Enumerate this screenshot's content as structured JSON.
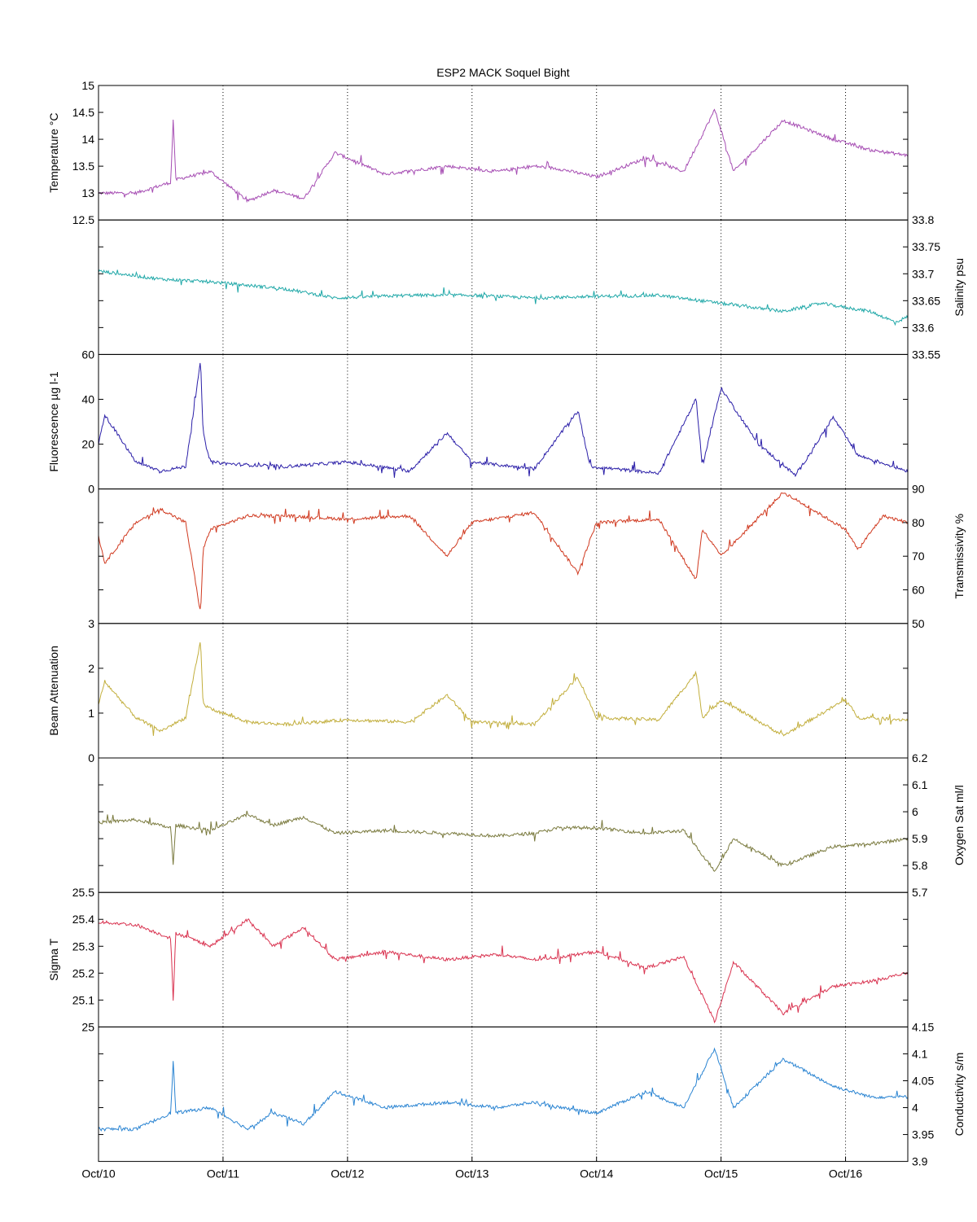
{
  "chart_data": {
    "type": "line",
    "title": "ESP2 MACK  Soquel Bight",
    "xlim": [
      0,
      6.5
    ],
    "x_ticks": [
      0,
      1,
      2,
      3,
      4,
      5,
      6
    ],
    "x_tick_labels": [
      "Oct/10",
      "Oct/11",
      "Oct/12",
      "Oct/13",
      "Oct/14",
      "Oct/15",
      "Oct/16"
    ],
    "grid": "vertical-dotted",
    "panels": [
      {
        "ylabel": "Temperature °C",
        "axis_side": "left",
        "color": "#A64DB3",
        "ylim": [
          12.5,
          15
        ],
        "yticks": [
          12.5,
          13,
          13.5,
          14,
          14.5,
          15
        ],
        "ytick_labels": [
          "12.5",
          "13",
          "13.5",
          "14",
          "14.5",
          "15"
        ],
        "x": [
          0,
          0.3,
          0.58,
          0.6,
          0.62,
          0.9,
          1.2,
          1.4,
          1.65,
          1.9,
          2.3,
          2.8,
          3.2,
          3.5,
          3.7,
          4.0,
          4.4,
          4.7,
          4.95,
          5.1,
          5.5,
          5.9,
          6.2,
          6.5
        ],
        "values": [
          13.0,
          13.0,
          13.2,
          14.4,
          13.25,
          13.4,
          12.85,
          13.05,
          12.9,
          13.75,
          13.35,
          13.5,
          13.4,
          13.5,
          13.45,
          13.3,
          13.65,
          13.4,
          14.55,
          13.4,
          14.35,
          14.0,
          13.8,
          13.7
        ]
      },
      {
        "ylabel": "Salinity psu",
        "axis_side": "right",
        "color": "#20A8A8",
        "ylim": [
          33.55,
          33.8
        ],
        "yticks": [
          33.55,
          33.6,
          33.65,
          33.7,
          33.75,
          33.8
        ],
        "ytick_labels": [
          "33.55",
          "33.6",
          "33.65",
          "33.7",
          "33.75",
          "33.8"
        ],
        "x": [
          0,
          0.5,
          0.9,
          1.5,
          1.9,
          2.5,
          3.0,
          3.5,
          4.0,
          4.5,
          5.0,
          5.5,
          5.8,
          6.2,
          6.4,
          6.5
        ],
        "values": [
          33.705,
          33.69,
          33.685,
          33.672,
          33.655,
          33.66,
          33.66,
          33.655,
          33.658,
          33.66,
          33.645,
          33.63,
          33.645,
          33.63,
          33.61,
          33.62
        ]
      },
      {
        "ylabel": "Fluorescence µg l-1",
        "axis_side": "left",
        "color": "#2B1FA8",
        "ylim": [
          0,
          60
        ],
        "yticks": [
          0,
          20,
          40,
          60
        ],
        "ytick_labels": [
          "0",
          "20",
          "40",
          "60"
        ],
        "x": [
          0,
          0.05,
          0.3,
          0.5,
          0.7,
          0.82,
          0.84,
          0.9,
          1.1,
          1.5,
          2.0,
          2.5,
          2.8,
          3.0,
          3.5,
          3.85,
          3.95,
          4.5,
          4.8,
          4.85,
          5.0,
          5.3,
          5.6,
          5.9,
          6.1,
          6.5
        ],
        "values": [
          20,
          33,
          12,
          8,
          10,
          57,
          25,
          12,
          11,
          10,
          12,
          8,
          25,
          12,
          9,
          35,
          10,
          7,
          40,
          10,
          45,
          20,
          6,
          32,
          15,
          8
        ]
      },
      {
        "ylabel": "Transmissivity %",
        "axis_side": "right",
        "color": "#D0391F",
        "ylim": [
          50,
          90
        ],
        "yticks": [
          50,
          60,
          70,
          80,
          90
        ],
        "ytick_labels": [
          "50",
          "60",
          "70",
          "80",
          "90"
        ],
        "x": [
          0,
          0.05,
          0.3,
          0.5,
          0.7,
          0.82,
          0.84,
          0.9,
          1.2,
          1.5,
          2.0,
          2.5,
          2.8,
          3.0,
          3.5,
          3.85,
          4.0,
          4.5,
          4.8,
          4.85,
          5.0,
          5.5,
          6.0,
          6.1,
          6.3,
          6.5
        ],
        "values": [
          76,
          68,
          80,
          84,
          80,
          53,
          72,
          78,
          82,
          82,
          81,
          82,
          70,
          80,
          83,
          65,
          80,
          81,
          63,
          78,
          70,
          89,
          78,
          72,
          82,
          80
        ]
      },
      {
        "ylabel": "Beam Attenuation",
        "axis_side": "left",
        "color": "#C2AE3C",
        "ylim": [
          0,
          3
        ],
        "yticks": [
          0,
          1,
          2,
          3
        ],
        "ytick_labels": [
          "0",
          "1",
          "2",
          "3"
        ],
        "x": [
          0,
          0.05,
          0.3,
          0.5,
          0.7,
          0.82,
          0.84,
          0.9,
          1.2,
          1.5,
          2.0,
          2.5,
          2.8,
          3.0,
          3.5,
          3.85,
          4.0,
          4.5,
          4.8,
          4.85,
          5.0,
          5.5,
          6.0,
          6.1,
          6.5
        ],
        "values": [
          1.2,
          1.7,
          0.9,
          0.6,
          0.9,
          2.6,
          1.2,
          1.1,
          0.8,
          0.75,
          0.85,
          0.8,
          1.4,
          0.8,
          0.75,
          1.8,
          0.9,
          0.85,
          1.9,
          0.9,
          1.3,
          0.5,
          1.3,
          0.9,
          0.85
        ]
      },
      {
        "ylabel": "Oxygen Sat ml/l",
        "axis_side": "right",
        "color": "#7A7A3E",
        "ylim": [
          5.7,
          6.2
        ],
        "yticks": [
          5.7,
          5.8,
          5.9,
          6,
          6.1,
          6.2
        ],
        "ytick_labels": [
          "5.7",
          "5.8",
          "5.9",
          "6",
          "6.1",
          "6.2"
        ],
        "x": [
          0,
          0.3,
          0.58,
          0.6,
          0.62,
          0.9,
          1.2,
          1.4,
          1.65,
          1.9,
          2.3,
          2.8,
          3.2,
          3.5,
          3.7,
          4.0,
          4.4,
          4.7,
          4.95,
          5.1,
          5.5,
          5.9,
          6.2,
          6.5
        ],
        "values": [
          5.96,
          5.97,
          5.94,
          5.8,
          5.95,
          5.93,
          5.99,
          5.95,
          5.98,
          5.92,
          5.93,
          5.92,
          5.91,
          5.92,
          5.94,
          5.94,
          5.92,
          5.93,
          5.78,
          5.9,
          5.8,
          5.87,
          5.88,
          5.9
        ]
      },
      {
        "ylabel": "Sigma T",
        "axis_side": "left",
        "color": "#D93350",
        "ylim": [
          25,
          25.5
        ],
        "yticks": [
          25,
          25.1,
          25.2,
          25.3,
          25.4,
          25.5
        ],
        "ytick_labels": [
          "25",
          "25.1",
          "25.2",
          "25.3",
          "25.4",
          "25.5"
        ],
        "x": [
          0,
          0.3,
          0.58,
          0.6,
          0.62,
          0.9,
          1.2,
          1.4,
          1.65,
          1.9,
          2.3,
          2.8,
          3.2,
          3.5,
          3.7,
          4.0,
          4.4,
          4.7,
          4.95,
          5.1,
          5.5,
          5.9,
          6.2,
          6.5
        ],
        "values": [
          25.39,
          25.38,
          25.33,
          25.09,
          25.35,
          25.3,
          25.4,
          25.3,
          25.37,
          25.25,
          25.28,
          25.25,
          25.27,
          25.25,
          25.26,
          25.28,
          25.22,
          25.26,
          25.02,
          25.24,
          25.05,
          25.15,
          25.17,
          25.2
        ]
      },
      {
        "ylabel": "Conductivity s/m",
        "axis_side": "right",
        "color": "#2A84D2",
        "ylim": [
          3.9,
          4.15
        ],
        "yticks": [
          3.9,
          3.95,
          4,
          4.05,
          4.1,
          4.15
        ],
        "ytick_labels": [
          "3.9",
          "3.95",
          "4",
          "4.05",
          "4.1",
          "4.15"
        ],
        "x": [
          0,
          0.3,
          0.58,
          0.6,
          0.62,
          0.9,
          1.2,
          1.4,
          1.65,
          1.9,
          2.3,
          2.8,
          3.2,
          3.5,
          3.7,
          4.0,
          4.4,
          4.7,
          4.95,
          5.1,
          5.5,
          5.9,
          6.2,
          6.5
        ],
        "values": [
          3.96,
          3.96,
          3.99,
          4.09,
          3.99,
          4.0,
          3.96,
          3.99,
          3.97,
          4.03,
          4.0,
          4.01,
          4.0,
          4.01,
          4.0,
          3.99,
          4.03,
          4.0,
          4.11,
          4.0,
          4.09,
          4.04,
          4.02,
          4.02
        ]
      }
    ]
  }
}
